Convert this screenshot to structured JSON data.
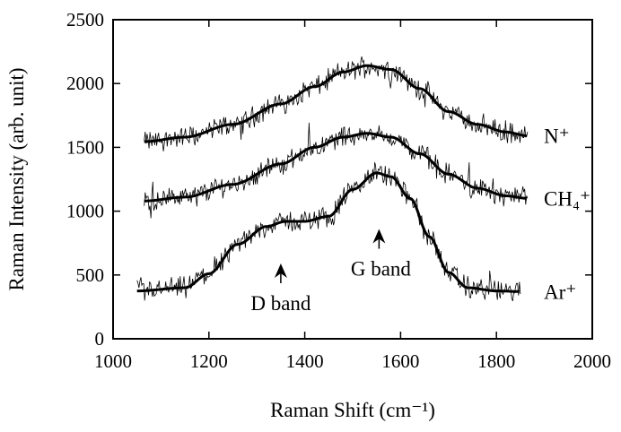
{
  "chart_data": {
    "type": "line",
    "title": "",
    "xlabel": "Raman Shift (cm⁻¹)",
    "ylabel": "Raman Intensity (arb. unit)",
    "xlim": [
      1000,
      2000
    ],
    "ylim": [
      0,
      2500
    ],
    "x_ticks": [
      1000,
      1200,
      1400,
      1600,
      1800,
      2000
    ],
    "y_ticks": [
      0,
      500,
      1000,
      1500,
      2000,
      2500
    ],
    "grid": false,
    "legend": "none",
    "series": [
      {
        "name": "N⁺",
        "x_range": [
          1065,
          1865
        ],
        "fit": [
          [
            1065,
            1545
          ],
          [
            1150,
            1580
          ],
          [
            1250,
            1680
          ],
          [
            1350,
            1840
          ],
          [
            1420,
            1975
          ],
          [
            1480,
            2090
          ],
          [
            1530,
            2140
          ],
          [
            1580,
            2110
          ],
          [
            1640,
            1960
          ],
          [
            1700,
            1780
          ],
          [
            1760,
            1680
          ],
          [
            1820,
            1620
          ],
          [
            1865,
            1590
          ]
        ]
      },
      {
        "name": "CH₄⁺",
        "x_range": [
          1065,
          1865
        ],
        "fit": [
          [
            1065,
            1080
          ],
          [
            1150,
            1110
          ],
          [
            1250,
            1210
          ],
          [
            1350,
            1370
          ],
          [
            1420,
            1500
          ],
          [
            1480,
            1580
          ],
          [
            1530,
            1610
          ],
          [
            1580,
            1580
          ],
          [
            1640,
            1450
          ],
          [
            1700,
            1290
          ],
          [
            1760,
            1180
          ],
          [
            1820,
            1120
          ],
          [
            1865,
            1100
          ]
        ]
      },
      {
        "name": "Ar⁺",
        "x_range": [
          1050,
          1850
        ],
        "fit": [
          [
            1050,
            375
          ],
          [
            1150,
            400
          ],
          [
            1200,
            510
          ],
          [
            1260,
            740
          ],
          [
            1320,
            880
          ],
          [
            1360,
            920
          ],
          [
            1400,
            920
          ],
          [
            1450,
            960
          ],
          [
            1500,
            1170
          ],
          [
            1550,
            1300
          ],
          [
            1580,
            1270
          ],
          [
            1620,
            1100
          ],
          [
            1660,
            800
          ],
          [
            1700,
            520
          ],
          [
            1740,
            400
          ],
          [
            1800,
            375
          ],
          [
            1850,
            370
          ]
        ]
      }
    ],
    "annotations": [
      {
        "text": "D band",
        "arrow_x": 1350,
        "arrow_y": 590
      },
      {
        "text": "G band",
        "arrow_x": 1555,
        "arrow_y": 860
      }
    ]
  }
}
